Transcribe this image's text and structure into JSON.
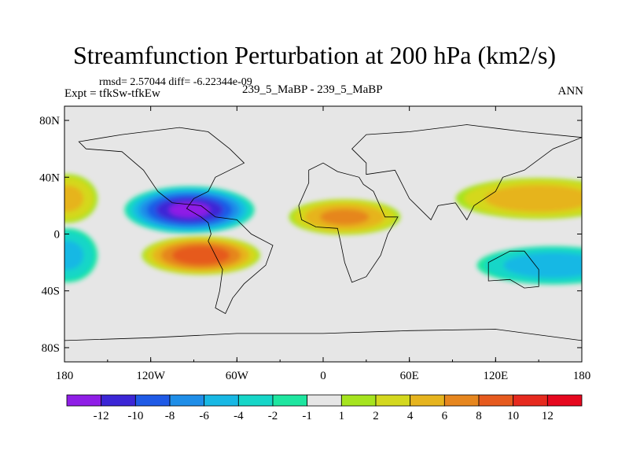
{
  "chart_data": {
    "type": "heatmap",
    "title": "Streamfunction Perturbation at 200 hPa (km2/s)",
    "stats_text": "rmsd= 2.57044 diff= -6.22344e-09",
    "left_label": "Expt = tfkSw-tfkEw",
    "center_label": "239_5_MaBP - 239_5_MaBP",
    "right_label": "ANN",
    "x_ticks": [
      {
        "value": -180,
        "label": "180"
      },
      {
        "value": -120,
        "label": "120W"
      },
      {
        "value": -60,
        "label": "60W"
      },
      {
        "value": 0,
        "label": "0"
      },
      {
        "value": 60,
        "label": "60E"
      },
      {
        "value": 120,
        "label": "120E"
      },
      {
        "value": 180,
        "label": "180"
      }
    ],
    "y_ticks": [
      {
        "value": 80,
        "label": "80N"
      },
      {
        "value": 40,
        "label": "40N"
      },
      {
        "value": 0,
        "label": "0"
      },
      {
        "value": -40,
        "label": "40S"
      },
      {
        "value": -80,
        "label": "80S"
      }
    ],
    "xlim": [
      -180,
      180
    ],
    "ylim": [
      -90,
      90
    ],
    "colorbar": {
      "labels": [
        "-12",
        "-10",
        "-8",
        "-6",
        "-4",
        "-2",
        "-1",
        "1",
        "2",
        "4",
        "6",
        "8",
        "10",
        "12"
      ],
      "colors": [
        "#8f1ee6",
        "#3c26d6",
        "#1f5ae6",
        "#1f8ee8",
        "#18b8e4",
        "#16d6c8",
        "#1ee6a0",
        "#e6e6e6",
        "#a6e41e",
        "#d4d81e",
        "#e6b41e",
        "#e6861e",
        "#e65a1e",
        "#e62a1e",
        "#e6081e"
      ]
    },
    "features": [
      {
        "name": "NE Pacific low",
        "lon": -93,
        "lat": 17,
        "peak": -12,
        "width_lon": 46,
        "width_lat": 17
      },
      {
        "name": "Tropical E Pacific high",
        "lon": -85,
        "lat": -15,
        "peak": 9,
        "width_lon": 42,
        "width_lat": 14
      },
      {
        "name": "Africa high",
        "lon": 15,
        "lat": 12,
        "peak": 6,
        "width_lon": 40,
        "width_lat": 13
      },
      {
        "name": "S Pacific low",
        "lon": 160,
        "lat": -22,
        "peak": -5,
        "width_lon": 55,
        "width_lat": 14
      },
      {
        "name": "W Pacific high",
        "lon": 150,
        "lat": 25,
        "peak": 5,
        "width_lon": 60,
        "width_lat": 15
      },
      {
        "name": "Date line high",
        "lon": -178,
        "lat": 25,
        "peak": 4,
        "width_lon": 22,
        "width_lat": 18
      },
      {
        "name": "Date line low",
        "lon": -178,
        "lat": -15,
        "peak": -4,
        "width_lon": 22,
        "width_lat": 20
      }
    ]
  }
}
